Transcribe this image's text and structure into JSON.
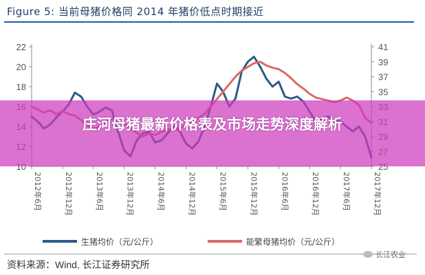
{
  "title": "Figure 5: 当前母猪价格同 2014 年猪价低点时期接近",
  "banner": "庄河母猪最新价格表及市场走势深度解析",
  "source": "资料来源：Wind, 长江证券研究所",
  "watermark": "长江农业",
  "chart_data": {
    "type": "line",
    "title": "当前母猪价格同 2014 年猪价低点时期接近",
    "xlabel": "",
    "ylabel_left": "",
    "ylabel_right": "",
    "x_tick_labels": [
      "2012年6月",
      "2012年12月",
      "2013年6月",
      "2013年12月",
      "2014年6月",
      "2014年12月",
      "2015年6月",
      "2015年12月",
      "2016年6月",
      "2016年12月",
      "2017年6月",
      "2017年12月"
    ],
    "ylim_left": [
      10,
      22
    ],
    "ylim_right": [
      25,
      41
    ],
    "y_ticks_left": [
      10,
      12,
      14,
      16,
      18,
      20,
      22
    ],
    "y_ticks_right": [
      25,
      27,
      29,
      31,
      33,
      35,
      37,
      39,
      41
    ],
    "series": [
      {
        "name": "生猪均价（元/公斤）",
        "axis": "left",
        "color": "#2d5a86",
        "x": [
          0,
          0.2,
          0.4,
          0.6,
          0.8,
          1.0,
          1.2,
          1.4,
          1.6,
          1.8,
          2.0,
          2.2,
          2.4,
          2.6,
          2.8,
          3.0,
          3.2,
          3.4,
          3.6,
          3.8,
          4.0,
          4.2,
          4.4,
          4.6,
          4.8,
          5.0,
          5.2,
          5.4,
          5.6,
          5.8,
          6.0,
          6.2,
          6.4,
          6.6,
          6.8,
          7.0,
          7.2,
          7.4,
          7.6,
          7.8,
          8.0,
          8.2,
          8.4,
          8.6,
          8.8,
          9.0,
          9.2,
          9.4,
          9.6,
          9.8,
          10.0,
          10.2,
          10.4,
          10.6,
          10.8,
          11.0
        ],
        "values": [
          15.0,
          14.5,
          13.8,
          14.2,
          14.9,
          15.5,
          16.2,
          17.4,
          17.0,
          16.0,
          15.2,
          15.5,
          15.9,
          15.6,
          13.5,
          11.6,
          11.0,
          12.6,
          13.3,
          13.5,
          12.4,
          12.6,
          13.3,
          14.0,
          13.5,
          12.3,
          11.8,
          12.5,
          14.0,
          16.0,
          18.3,
          17.5,
          16.0,
          16.8,
          19.5,
          20.5,
          21.0,
          20.0,
          18.8,
          18.0,
          18.5,
          17.0,
          16.8,
          17.0,
          16.5,
          15.5,
          14.5,
          14.8,
          15.0,
          14.6,
          14.5,
          14.0,
          13.5,
          14.0,
          13.0,
          10.9
        ]
      },
      {
        "name": "能繁母猪均价（元/公斤）",
        "axis": "right",
        "color": "#d86a66",
        "x": [
          0,
          0.2,
          0.4,
          0.6,
          0.8,
          1.0,
          1.2,
          1.4,
          1.6,
          1.8,
          2.0,
          2.2,
          2.4,
          2.6,
          2.8,
          3.0,
          3.2,
          3.4,
          3.6,
          3.8,
          4.0,
          4.2,
          4.4,
          4.6,
          4.8,
          5.0,
          5.2,
          5.4,
          5.6,
          5.8,
          6.0,
          6.2,
          6.4,
          6.6,
          6.8,
          7.0,
          7.2,
          7.4,
          7.6,
          7.8,
          8.0,
          8.2,
          8.4,
          8.6,
          8.8,
          9.0,
          9.2,
          9.4,
          9.6,
          9.8,
          10.0,
          10.2,
          10.4,
          10.6,
          10.8,
          11.0
        ],
        "values": [
          33.0,
          32.6,
          32.2,
          32.5,
          32.0,
          32.4,
          32.0,
          31.8,
          31.2,
          30.5,
          30.0,
          30.3,
          31.0,
          31.4,
          31.0,
          30.7,
          30.0,
          29.5,
          29.0,
          29.4,
          29.2,
          29.6,
          30.0,
          29.8,
          30.2,
          30.5,
          31.0,
          31.5,
          32.0,
          33.0,
          34.0,
          35.0,
          36.0,
          37.0,
          37.8,
          38.3,
          38.8,
          39.0,
          38.5,
          38.2,
          38.0,
          37.5,
          36.8,
          36.0,
          35.4,
          34.7,
          34.2,
          34.0,
          33.8,
          33.6,
          33.8,
          34.2,
          33.8,
          33.2,
          31.5,
          30.8
        ]
      }
    ],
    "legend": [
      {
        "label": "生猪均价（元/公斤）",
        "color": "#2d5a86"
      },
      {
        "label": "能繁母猪均价（元/公斤）",
        "color": "#d86a66"
      }
    ],
    "legend_placement": "bottom",
    "grid": false
  }
}
